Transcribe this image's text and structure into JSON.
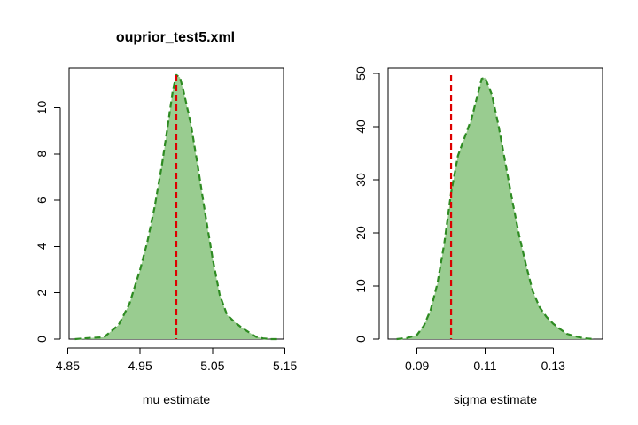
{
  "figure": {
    "title": "ouprior_test5.xml"
  },
  "chart_data": [
    {
      "type": "area",
      "title": "ouprior_test5.xml",
      "xlabel": "mu estimate",
      "ylabel": "",
      "xlim": [
        4.852,
        5.148
      ],
      "ylim": [
        0,
        11.7
      ],
      "xticks": [
        4.85,
        4.95,
        5.05,
        5.15
      ],
      "xtick_labels": [
        "4.85",
        "4.95",
        "5.05",
        "5.15"
      ],
      "yticks": [
        0,
        2,
        4,
        6,
        8,
        10
      ],
      "ytick_labels": [
        "0",
        "2",
        "4",
        "6",
        "8",
        "10"
      ],
      "grid": false,
      "colors": {
        "fill": "#99cc90",
        "line": "#2e8b22",
        "reference": "#dd0000"
      },
      "reference_line": 5.0,
      "series": [
        {
          "x": [
            4.86,
            4.88,
            4.9,
            4.92,
            4.935,
            4.95,
            4.96,
            4.97,
            4.98,
            4.99,
            4.995,
            5.0,
            5.005,
            5.01,
            5.02,
            5.03,
            5.04,
            5.05,
            5.06,
            5.07,
            5.08,
            5.09,
            5.1,
            5.11,
            5.12,
            5.13,
            5.14
          ],
          "y": [
            0,
            0.05,
            0.08,
            0.6,
            1.5,
            3.0,
            4.2,
            5.7,
            7.5,
            9.6,
            10.7,
            11.4,
            11.3,
            10.7,
            9.3,
            7.4,
            5.4,
            3.5,
            1.9,
            1.05,
            0.75,
            0.5,
            0.3,
            0.1,
            0.03,
            0,
            0
          ]
        }
      ]
    },
    {
      "type": "area",
      "title": "",
      "xlabel": "sigma estimate",
      "ylabel": "",
      "xlim": [
        0.0815,
        0.1445
      ],
      "ylim": [
        0,
        51
      ],
      "xticks": [
        0.09,
        0.11,
        0.13
      ],
      "xtick_labels": [
        "0.09",
        "0.11",
        "0.13"
      ],
      "yticks": [
        0,
        10,
        20,
        30,
        40,
        50
      ],
      "ytick_labels": [
        "0",
        "10",
        "20",
        "30",
        "40",
        "50"
      ],
      "grid": false,
      "colors": {
        "fill": "#99cc90",
        "line": "#2e8b22",
        "reference": "#dd0000"
      },
      "reference_line": 0.1,
      "series": [
        {
          "x": [
            0.084,
            0.087,
            0.09,
            0.092,
            0.094,
            0.096,
            0.098,
            0.1,
            0.102,
            0.104,
            0.106,
            0.108,
            0.109,
            0.11,
            0.112,
            0.114,
            0.116,
            0.118,
            0.12,
            0.122,
            0.124,
            0.126,
            0.128,
            0.13,
            0.132,
            0.134,
            0.136,
            0.138,
            0.14,
            0.142
          ],
          "y": [
            0,
            0.2,
            0.8,
            2.5,
            5.5,
            10.5,
            18.0,
            27.5,
            34.5,
            38.0,
            41.5,
            46.5,
            49.0,
            49.2,
            46.0,
            40.0,
            33.0,
            26.0,
            19.5,
            14.0,
            9.0,
            6.0,
            4.2,
            2.9,
            1.9,
            1.0,
            0.6,
            0.3,
            0.1,
            0
          ]
        }
      ]
    }
  ]
}
